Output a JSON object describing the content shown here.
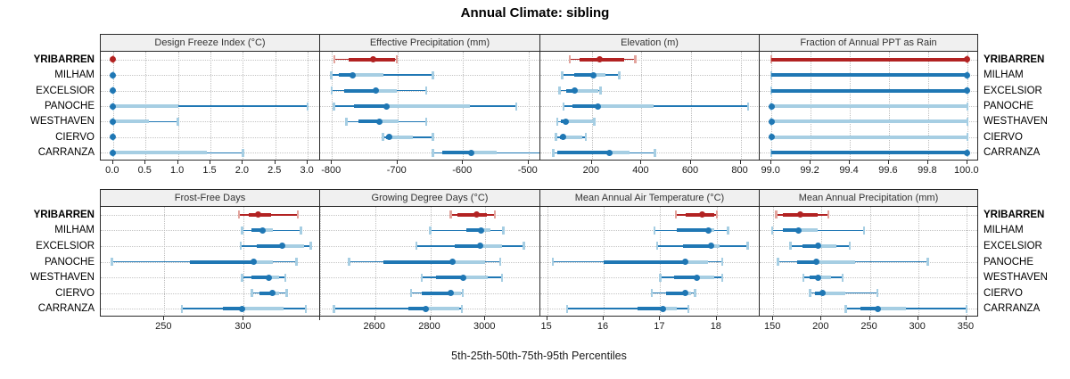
{
  "title": "Annual Climate: sibling",
  "x_axis_label": "5th-25th-50th-75th-95th Percentiles",
  "highlight_station": "YRIBARREN",
  "colors": {
    "highlight": "#b22222",
    "highlight_light": "#e2a49d",
    "normal": "#1f77b4",
    "normal_light": "#a6cee3",
    "grid": "#c4c4c4",
    "strip_bg": "#f0f0f0",
    "border": "#2a2a2a"
  },
  "chart_data": {
    "type": "scatter",
    "subtype": "percentile-dot-whisker",
    "grid": "dotted",
    "percentiles": [
      5,
      25,
      50,
      75,
      95
    ],
    "stations": [
      "YRIBARREN",
      "MILHAM",
      "EXCELSIOR",
      "PANOCHE",
      "WESTHAVEN",
      "CIERVO",
      "CARRANZA"
    ],
    "panels": [
      {
        "title": "Design Freeze Index (°C)",
        "grid_row": 0,
        "grid_col": 0,
        "domain": [
          -0.19,
          3.19
        ],
        "ticks": [
          {
            "v": 0,
            "label": "0.0"
          },
          {
            "v": 0.5,
            "label": "0.5"
          },
          {
            "v": 1,
            "label": "1.0"
          },
          {
            "v": 1.5,
            "label": "1.5"
          },
          {
            "v": 2,
            "label": "2.0"
          },
          {
            "v": 2.5,
            "label": "2.5"
          },
          {
            "v": 3,
            "label": "3.0"
          }
        ],
        "series": [
          [
            0,
            0,
            0,
            0,
            0
          ],
          [
            0,
            0,
            0,
            0,
            0
          ],
          [
            0,
            0,
            0,
            0,
            0
          ],
          [
            0,
            0,
            0,
            1.0,
            3.0
          ],
          [
            0,
            0,
            0,
            0.55,
            1.0
          ],
          [
            0,
            0,
            0,
            0,
            0
          ],
          [
            0,
            0,
            0,
            1.45,
            2.0
          ]
        ]
      },
      {
        "title": "Effective Precipitation (mm)",
        "grid_row": 0,
        "grid_col": 1,
        "domain": [
          -818,
          -482
        ],
        "ticks": [
          {
            "v": -800,
            "label": "-800"
          },
          {
            "v": -700,
            "label": "-700"
          },
          {
            "v": -600,
            "label": "-600"
          },
          {
            "v": -500,
            "label": "-500"
          }
        ],
        "series": [
          [
            -796,
            -775,
            -737,
            -704,
            -701
          ],
          [
            -801,
            -790,
            -768,
            -721,
            -646
          ],
          [
            -800,
            -781,
            -733,
            -701,
            -656
          ],
          [
            -797,
            -766,
            -717,
            -590,
            -519
          ],
          [
            -778,
            -760,
            -727,
            -698,
            -656
          ],
          [
            -722,
            -718,
            -712,
            -677,
            -646
          ],
          [
            -646,
            -632,
            -588,
            -549,
            -477
          ]
        ]
      },
      {
        "title": "Elevation (m)",
        "grid_row": 0,
        "grid_col": 2,
        "domain": [
          -8,
          877
        ],
        "ticks": [
          {
            "v": 200,
            "label": "200"
          },
          {
            "v": 400,
            "label": "400"
          },
          {
            "v": 600,
            "label": "600"
          },
          {
            "v": 800,
            "label": "800"
          }
        ],
        "series": [
          [
            110,
            150,
            230,
            330,
            375
          ],
          [
            80,
            130,
            205,
            255,
            310
          ],
          [
            70,
            95,
            130,
            225,
            235
          ],
          [
            85,
            120,
            225,
            450,
            830
          ],
          [
            60,
            75,
            95,
            205,
            210
          ],
          [
            55,
            70,
            85,
            160,
            175
          ],
          [
            45,
            60,
            270,
            350,
            455
          ]
        ]
      },
      {
        "title": "Fraction of Annual PPT as Rain",
        "grid_row": 0,
        "grid_col": 3,
        "domain": [
          98.94,
          100.06
        ],
        "ticks": [
          {
            "v": 99.0,
            "label": "99.0"
          },
          {
            "v": 99.2,
            "label": "99.2"
          },
          {
            "v": 99.4,
            "label": "99.4"
          },
          {
            "v": 99.6,
            "label": "99.6"
          },
          {
            "v": 99.8,
            "label": "99.8"
          },
          {
            "v": 100.0,
            "label": "100.0"
          }
        ],
        "series": [
          [
            99,
            99,
            100,
            100,
            100
          ],
          [
            99,
            99,
            100,
            100,
            100
          ],
          [
            99,
            99,
            100,
            100,
            100
          ],
          [
            99,
            99,
            99,
            100,
            100
          ],
          [
            99,
            99,
            99,
            100,
            100
          ],
          [
            99,
            99,
            99,
            100,
            100
          ],
          [
            99,
            99,
            100,
            100,
            100
          ]
        ]
      },
      {
        "title": "Frost-Free Days",
        "grid_row": 1,
        "grid_col": 0,
        "domain": [
          210,
          348
        ],
        "ticks": [
          {
            "v": 250,
            "label": "250"
          },
          {
            "v": 300,
            "label": "300"
          }
        ],
        "series": [
          [
            297,
            303,
            309,
            317,
            334
          ],
          [
            299,
            305,
            312,
            318,
            336
          ],
          [
            298,
            308,
            324,
            338,
            342
          ],
          [
            217,
            266,
            306,
            318,
            333
          ],
          [
            299,
            305,
            316,
            322,
            326
          ],
          [
            305,
            310,
            318,
            322,
            327
          ],
          [
            261,
            287,
            299,
            325,
            339
          ]
        ]
      },
      {
        "title": "Growing Degree Days (°C)",
        "grid_row": 1,
        "grid_col": 1,
        "domain": [
          2400,
          3200
        ],
        "ticks": [
          {
            "v": 2400,
            "label": ""
          },
          {
            "v": 2600,
            "label": "2600"
          },
          {
            "v": 2800,
            "label": "2800"
          },
          {
            "v": 3000,
            "label": "3000"
          }
        ],
        "series": [
          [
            2875,
            2900,
            2970,
            3005,
            3035
          ],
          [
            2800,
            2930,
            2985,
            3020,
            3065
          ],
          [
            2750,
            2890,
            2980,
            3060,
            3140
          ],
          [
            2505,
            2630,
            2880,
            3000,
            3055
          ],
          [
            2770,
            2820,
            2920,
            3010,
            3060
          ],
          [
            2730,
            2770,
            2875,
            2912,
            2918
          ],
          [
            2450,
            2720,
            2785,
            2905,
            2915
          ]
        ]
      },
      {
        "title": "Mean Annual Air Temperature (°C)",
        "grid_row": 1,
        "grid_col": 2,
        "domain": [
          14.88,
          18.76
        ],
        "ticks": [
          {
            "v": 15,
            "label": "15"
          },
          {
            "v": 16,
            "label": "16"
          },
          {
            "v": 17,
            "label": "17"
          },
          {
            "v": 18,
            "label": "18"
          }
        ],
        "series": [
          [
            17.28,
            17.45,
            17.75,
            17.95,
            18.0
          ],
          [
            16.9,
            17.3,
            17.85,
            17.95,
            18.2
          ],
          [
            16.95,
            17.4,
            17.9,
            18.05,
            18.55
          ],
          [
            15.1,
            16.0,
            17.45,
            17.85,
            18.1
          ],
          [
            17.0,
            17.25,
            17.65,
            17.95,
            18.1
          ],
          [
            16.85,
            17.1,
            17.45,
            17.55,
            17.62
          ],
          [
            15.35,
            16.6,
            17.05,
            17.3,
            17.5
          ]
        ]
      },
      {
        "title": "Mean Annual Precipitation (mm)",
        "grid_row": 1,
        "grid_col": 3,
        "domain": [
          136,
          363
        ],
        "ticks": [
          {
            "v": 150,
            "label": "150"
          },
          {
            "v": 200,
            "label": "200"
          },
          {
            "v": 250,
            "label": "250"
          },
          {
            "v": 300,
            "label": "300"
          },
          {
            "v": 350,
            "label": "350"
          }
        ],
        "series": [
          [
            153,
            160,
            178,
            196,
            207
          ],
          [
            149,
            160,
            176,
            196,
            244
          ],
          [
            168,
            180,
            196,
            215,
            229
          ],
          [
            155,
            175,
            195,
            235,
            310
          ],
          [
            181,
            188,
            196,
            210,
            222
          ],
          [
            188,
            193,
            201,
            225,
            258
          ],
          [
            225,
            240,
            258,
            287,
            350
          ]
        ]
      }
    ]
  }
}
